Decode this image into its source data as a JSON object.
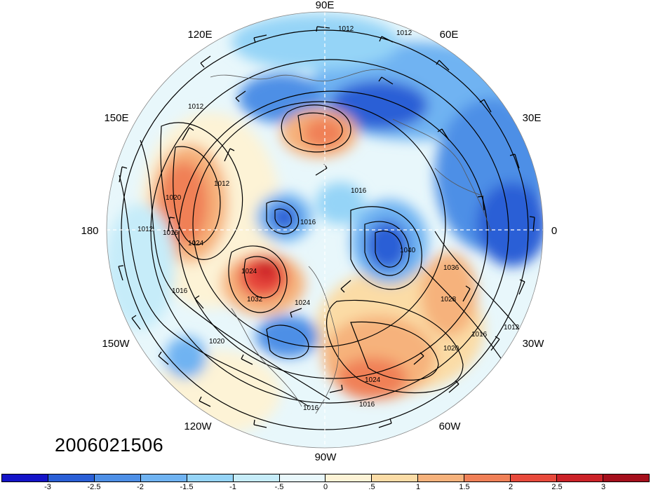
{
  "timestamp": "2006021506",
  "longitude_labels": [
    "90E",
    "60E",
    "30E",
    "0",
    "30W",
    "60W",
    "90W",
    "120W",
    "150W",
    "180",
    "150E",
    "120E"
  ],
  "contour_labels": [
    "1012",
    "1012",
    "1012",
    "1012",
    "1016",
    "1020",
    "1024",
    "1012",
    "1016",
    "1016",
    "1020",
    "1024",
    "1032",
    "1024",
    "1028",
    "1020",
    "1016",
    "1012",
    "1016",
    "1016",
    "1024",
    "1016",
    "1040",
    "1036"
  ],
  "colorbar": {
    "colors": [
      "#1414c8",
      "#2a5fd6",
      "#4d8fe6",
      "#6fb3f2",
      "#95d4f7",
      "#c6ecf9",
      "#e8f7fb",
      "#fdf3d6",
      "#fbdca6",
      "#f6b27c",
      "#f08057",
      "#e84a3c",
      "#cc2228",
      "#a50f1c"
    ],
    "tick_labels": [
      "-3",
      "-2.5",
      "-2",
      "-1.5",
      "-1",
      "-.5",
      "0",
      ".5",
      "1",
      "1.5",
      "2",
      "2.5",
      "3"
    ]
  }
}
